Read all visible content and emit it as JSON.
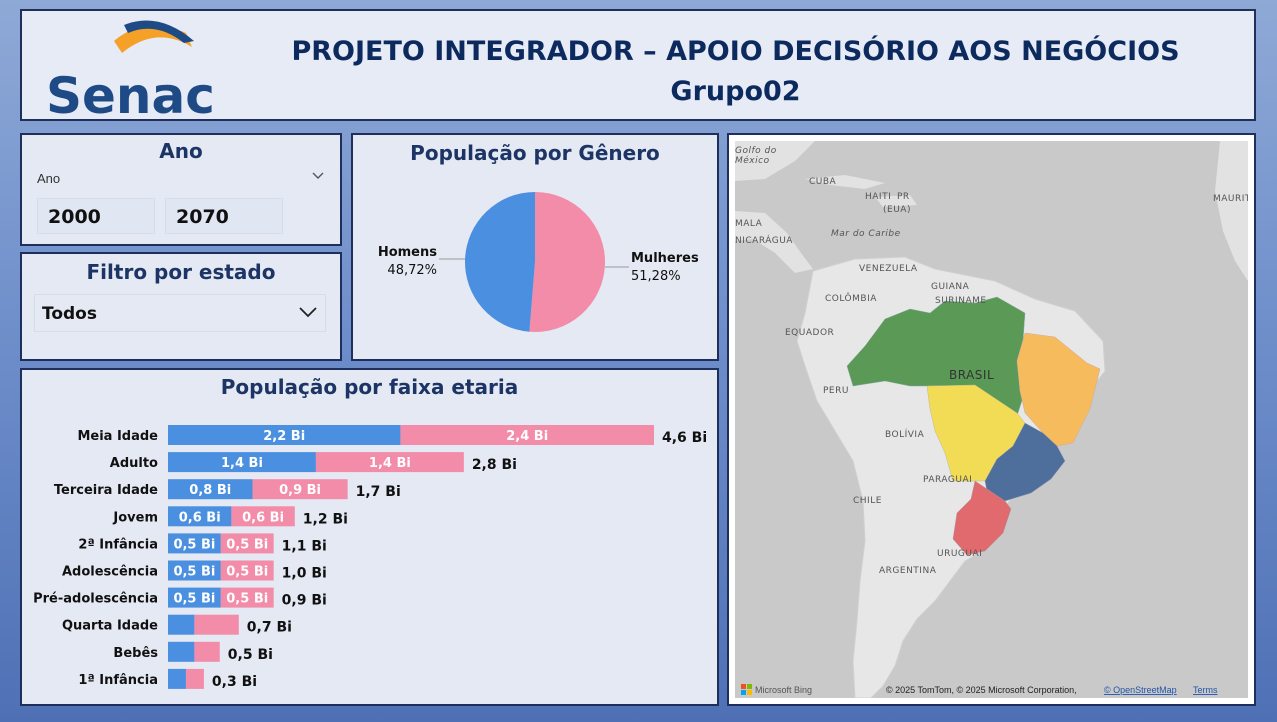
{
  "header": {
    "logo_text": "Senac",
    "title": "PROJETO INTEGRADOR – APOIO DECISÓRIO AOS NEGÓCIOS",
    "subtitle": "Grupo02"
  },
  "year_filter": {
    "title": "Ano",
    "field_label": "Ano",
    "start": "2000",
    "end": "2070"
  },
  "state_filter": {
    "title": "Filtro por estado",
    "selected": "Todos"
  },
  "gender": {
    "title": "População por Gênero",
    "colors": {
      "Homens": "#4a8fe0",
      "Mulheres": "#f28ca8"
    }
  },
  "age": {
    "title": "População por faixa etaria"
  },
  "chart_data": [
    {
      "type": "pie",
      "title": "População por Gênero",
      "labels": [
        "Homens",
        "Mulheres"
      ],
      "values": [
        48.72,
        51.28
      ],
      "value_labels": [
        "48,72%",
        "51,28%"
      ],
      "colors": [
        "#4a8fe0",
        "#f28ca8"
      ]
    },
    {
      "type": "bar",
      "orientation": "horizontal",
      "stacked": true,
      "title": "População por faixa etaria",
      "categories": [
        "Meia Idade",
        "Adulto",
        "Terceira Idade",
        "Jovem",
        "2ª Infância",
        "Adolescência",
        "Pré-adolescência",
        "Quarta Idade",
        "Bebês",
        "1ª Infância"
      ],
      "series": [
        {
          "values": [
            2.2,
            1.4,
            0.8,
            0.6,
            0.5,
            0.5,
            0.5,
            0.25,
            0.25,
            0.17
          ],
          "labels": [
            "2,2 Bi",
            "1,4 Bi",
            "0,8 Bi",
            "0,6 Bi",
            "0,5 Bi",
            "0,5 Bi",
            "0,5 Bi",
            "",
            "",
            ""
          ],
          "color": "#4a8fe0"
        },
        {
          "values": [
            2.4,
            1.4,
            0.9,
            0.6,
            0.5,
            0.5,
            0.5,
            0.42,
            0.24,
            0.17
          ],
          "labels": [
            "2,4 Bi",
            "1,4 Bi",
            "0,9 Bi",
            "0,6 Bi",
            "0,5 Bi",
            "0,5 Bi",
            "0,5 Bi",
            "",
            "",
            ""
          ],
          "color": "#f28ca8"
        }
      ],
      "totals": [
        "4,6 Bi",
        "2,8 Bi",
        "1,7 Bi",
        "1,2 Bi",
        "1,1 Bi",
        "1,0 Bi",
        "0,9 Bi",
        "0,7 Bi",
        "0,5 Bi",
        "0,3 Bi"
      ]
    }
  ],
  "map": {
    "labels": {
      "mexico": "Golfo do\nMéxico",
      "cuba": "CUBA",
      "haiti": "HAITI",
      "pr": "PR",
      "eua": "(EUA)",
      "caribe": "Mar do Caribe",
      "mauritania": "MAURIT",
      "mala": "MALA",
      "nicaragua": "NICARÁGUA",
      "venezuela": "VENEZUELA",
      "guiana": "GUIANA",
      "suriname": "SURINAME",
      "colombia": "COLÔMBIA",
      "equador": "EQUADOR",
      "peru": "PERU",
      "brasil": "BRASIL",
      "bolivia": "BOLÍVIA",
      "paraguai": "PARAGUAI",
      "chile": "CHILE",
      "uruguai": "URUGUAI",
      "argentina": "ARGENTINA"
    },
    "region_colors": {
      "norte": "#5a9a56",
      "nordeste": "#f5bb5c",
      "centro_oeste": "#f3dc55",
      "sudeste": "#4e6f9b",
      "sul": "#e06a6e"
    },
    "bing": "Microsoft Bing",
    "attribution": "© 2025 TomTom, © 2025 Microsoft Corporation,",
    "osm": "© OpenStreetMap",
    "terms": "Terms"
  }
}
